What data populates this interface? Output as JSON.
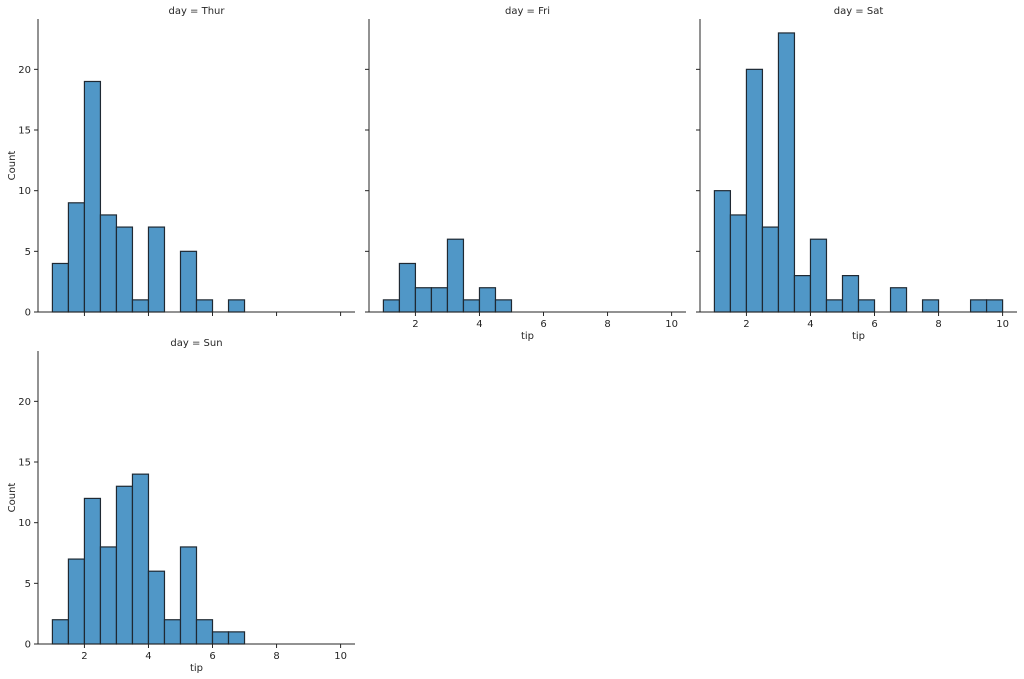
{
  "colors": {
    "bar_fill": "#5097c7",
    "bar_edge": "#1f2933",
    "text": "#262626"
  },
  "chart_data": [
    {
      "type": "bar",
      "title": "day = Thur",
      "xlabel": "",
      "ylabel": "Count",
      "xlim": [
        0.55,
        10.45
      ],
      "ylim": [
        0,
        24.15
      ],
      "xticks": [
        2,
        4,
        6,
        8,
        10
      ],
      "yticks": [
        0,
        5,
        10,
        15,
        20
      ],
      "show_xtick_labels": false,
      "show_ytick_labels": true,
      "bin_edges": [
        1.0,
        1.5,
        2.0,
        2.5,
        3.0,
        3.5,
        4.0,
        4.5,
        5.0,
        5.5,
        6.0,
        6.5,
        7.0,
        7.5,
        8.0,
        8.5,
        9.0,
        9.5,
        10.0
      ],
      "values": [
        4,
        9,
        19,
        8,
        7,
        1,
        7,
        0,
        5,
        1,
        0,
        1,
        0,
        0,
        0,
        0,
        0,
        0
      ]
    },
    {
      "type": "bar",
      "title": "day = Fri",
      "xlabel": "tip",
      "ylabel": "",
      "xlim": [
        0.55,
        10.45
      ],
      "ylim": [
        0,
        24.15
      ],
      "xticks": [
        2,
        4,
        6,
        8,
        10
      ],
      "yticks": [
        0,
        5,
        10,
        15,
        20
      ],
      "show_xtick_labels": true,
      "show_ytick_labels": false,
      "bin_edges": [
        1.0,
        1.5,
        2.0,
        2.5,
        3.0,
        3.5,
        4.0,
        4.5,
        5.0,
        5.5,
        6.0,
        6.5,
        7.0,
        7.5,
        8.0,
        8.5,
        9.0,
        9.5,
        10.0
      ],
      "values": [
        1,
        4,
        2,
        2,
        6,
        1,
        2,
        1,
        0,
        0,
        0,
        0,
        0,
        0,
        0,
        0,
        0,
        0
      ]
    },
    {
      "type": "bar",
      "title": "day = Sat",
      "xlabel": "tip",
      "ylabel": "",
      "xlim": [
        0.55,
        10.45
      ],
      "ylim": [
        0,
        24.15
      ],
      "xticks": [
        2,
        4,
        6,
        8,
        10
      ],
      "yticks": [
        0,
        5,
        10,
        15,
        20
      ],
      "show_xtick_labels": true,
      "show_ytick_labels": false,
      "bin_edges": [
        1.0,
        1.5,
        2.0,
        2.5,
        3.0,
        3.5,
        4.0,
        4.5,
        5.0,
        5.5,
        6.0,
        6.5,
        7.0,
        7.5,
        8.0,
        8.5,
        9.0,
        9.5,
        10.0
      ],
      "values": [
        10,
        8,
        20,
        7,
        23,
        3,
        6,
        1,
        3,
        1,
        0,
        2,
        0,
        1,
        0,
        0,
        1,
        1
      ]
    },
    {
      "type": "bar",
      "title": "day = Sun",
      "xlabel": "tip",
      "ylabel": "Count",
      "xlim": [
        0.55,
        10.45
      ],
      "ylim": [
        0,
        24.15
      ],
      "xticks": [
        2,
        4,
        6,
        8,
        10
      ],
      "yticks": [
        0,
        5,
        10,
        15,
        20
      ],
      "show_xtick_labels": true,
      "show_ytick_labels": true,
      "bin_edges": [
        1.0,
        1.5,
        2.0,
        2.5,
        3.0,
        3.5,
        4.0,
        4.5,
        5.0,
        5.5,
        6.0,
        6.5,
        7.0,
        7.5,
        8.0,
        8.5,
        9.0,
        9.5,
        10.0
      ],
      "values": [
        2,
        7,
        12,
        8,
        13,
        14,
        6,
        2,
        8,
        2,
        1,
        1,
        0,
        0,
        0,
        0,
        0,
        0
      ]
    }
  ]
}
